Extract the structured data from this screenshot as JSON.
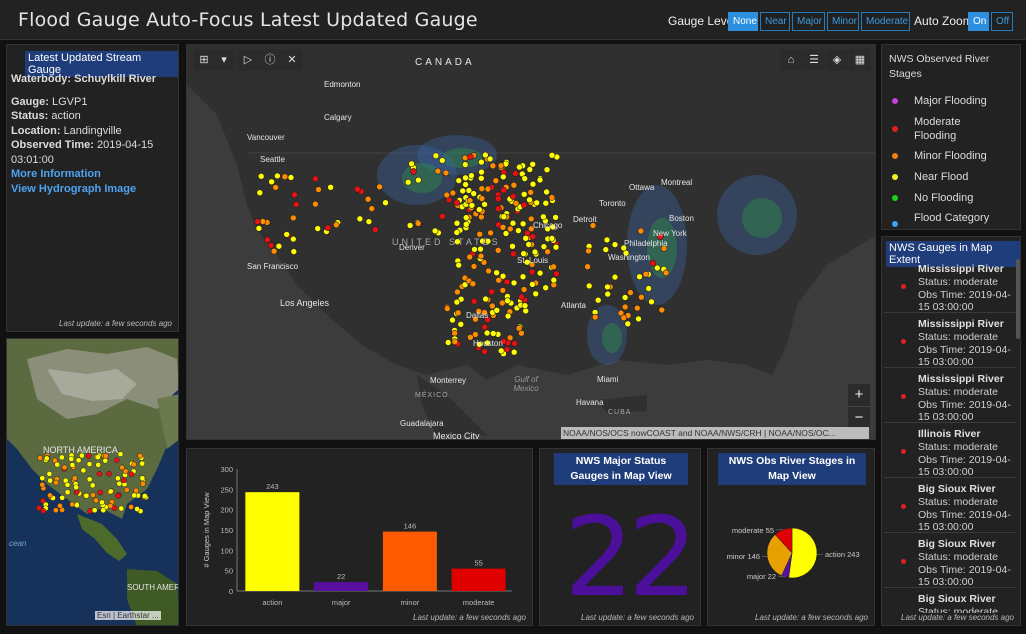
{
  "header": {
    "title": "Flood Gauge Auto-Focus Latest Updated Gauge",
    "gauge_level_label": "Gauge Level",
    "gauge_buttons": [
      "None",
      "Near",
      "Major",
      "Minor",
      "Moderate"
    ],
    "gauge_active": "None",
    "auto_zoom_label": "Auto Zoom",
    "auto_zoom_buttons": [
      "On",
      "Off"
    ],
    "auto_zoom_active": "On"
  },
  "latest": {
    "title": "Latest Updated Stream Gauge",
    "waterbody_label": "Waterbody:",
    "waterbody": "Schuylkill River",
    "gauge_label": "Gauge:",
    "gauge": "LGVP1",
    "status_label": "Status:",
    "status": "action",
    "location_label": "Location:",
    "location": "Landingville",
    "observed_label": "Observed Time:",
    "observed": "2019-04-15 03:01:00",
    "more_info": "More Information",
    "hydrograph": "View Hydrograph Image",
    "footer": "Last update: a few seconds ago"
  },
  "overview_map": {
    "label": "NORTH AMERICA",
    "south_label": "SOUTH AMERI",
    "ocean_label": "cean",
    "attribution": "Esri | Earthstar ..."
  },
  "main_map": {
    "cities": [
      "CANADA",
      "Edmonton",
      "Calgary",
      "Vancouver",
      "Seattle",
      "San Francisco",
      "Los Angeles",
      "Denver",
      "UNITED STATES",
      "Chicago",
      "Detroit",
      "Toronto",
      "Ottawa",
      "Montreal",
      "Boston",
      "New York",
      "Philadelphia",
      "Washington",
      "St. Louis",
      "Atlanta",
      "Dallas",
      "Houston",
      "Monterrey",
      "MÉXICO",
      "Guadalajara",
      "Mexico City",
      "Gulf of Mexico",
      "Miami",
      "Havana",
      "CUBA"
    ],
    "attribution": "NOAA/NOS/OCS nowCOAST and NOAA/NWS/CRH | NOAA/NOS/OC...",
    "zoom_in": "+",
    "zoom_out": "−",
    "tool_icons": [
      "legend-toggle-icon",
      "dropdown-icon",
      "play-icon",
      "info-icon",
      "close-icon"
    ],
    "right_tool_icons": [
      "home-icon",
      "list-icon",
      "layers-icon",
      "qr-icon"
    ]
  },
  "nws_legend": {
    "title": "NWS Observed River Stages",
    "items": [
      {
        "label": "Major Flooding",
        "color": "#c040e0"
      },
      {
        "label": "Moderate Flooding",
        "color": "#e02020"
      },
      {
        "label": "Minor Flooding",
        "color": "#f08010"
      },
      {
        "label": "Near Flood",
        "color": "#f0f020"
      },
      {
        "label": "No Flooding",
        "color": "#20d020"
      },
      {
        "label": "Flood Category",
        "color": "#40a0f0"
      }
    ]
  },
  "gauges_extent": {
    "title": "NWS Gauges in Map Extent",
    "items": [
      {
        "name": "Mississippi River",
        "status": "Status: moderate",
        "time": "Obs Time: 2019-04-15 03:00:00"
      },
      {
        "name": "Mississippi River",
        "status": "Status: moderate",
        "time": "Obs Time: 2019-04-15 03:00:00"
      },
      {
        "name": "Mississippi River",
        "status": "Status: moderate",
        "time": "Obs Time: 2019-04-15 03:00:00"
      },
      {
        "name": "Illinois River",
        "status": "Status: moderate",
        "time": "Obs Time: 2019-04-15 03:00:00"
      },
      {
        "name": "Big Sioux River",
        "status": "Status: moderate",
        "time": "Obs Time: 2019-04-15 03:00:00"
      },
      {
        "name": "Big Sioux River",
        "status": "Status: moderate",
        "time": "Obs Time: 2019-04-15 03:00:00"
      },
      {
        "name": "Big Sioux River",
        "status": "Status: moderate",
        "time": ""
      }
    ],
    "footer": "Last update: a few seconds ago"
  },
  "major_panel": {
    "title": "NWS Major Status Gauges in Map View",
    "value": "22",
    "footer": "Last update: a few seconds ago"
  },
  "bar_footer": "Last update: a few seconds ago",
  "pie_title": "NWS Obs River Stages in Map View",
  "pie_footer": "Last update: a few seconds ago",
  "chart_data": [
    {
      "type": "bar",
      "categories": [
        "action",
        "major",
        "minor",
        "moderate"
      ],
      "values": [
        243,
        22,
        146,
        55
      ],
      "colors": [
        "#ffff00",
        "#5a0f9e",
        "#ff5a00",
        "#e00000"
      ],
      "ylabel": "# Gauges in Map View",
      "ylim": [
        0,
        300
      ],
      "yticks": [
        0,
        50,
        100,
        150,
        200,
        250,
        300
      ],
      "grid": false
    },
    {
      "type": "pie",
      "categories": [
        "action",
        "major",
        "minor",
        "moderate"
      ],
      "values": [
        243,
        22,
        146,
        55
      ],
      "labels": [
        "action 243",
        "major 22",
        "minor 146",
        "moderate 55"
      ],
      "colors": [
        "#ffff00",
        "#5a0f9e",
        "#e8a000",
        "#e00000"
      ]
    }
  ]
}
